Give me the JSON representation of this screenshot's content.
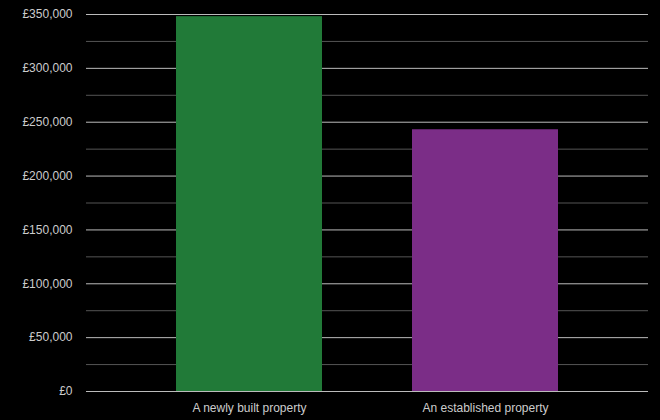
{
  "chart_data": {
    "type": "bar",
    "categories": [
      "A newly built property",
      "An established property"
    ],
    "values": [
      348000,
      243000
    ],
    "colors": [
      "#217a38",
      "#7b2d87"
    ],
    "ylim": [
      0,
      350000
    ],
    "yticks": [
      {
        "value": 0,
        "label": "£0"
      },
      {
        "value": 50000,
        "label": "£50,000"
      },
      {
        "value": 100000,
        "label": "£100,000"
      },
      {
        "value": 150000,
        "label": "£150,000"
      },
      {
        "value": 200000,
        "label": "£200,000"
      },
      {
        "value": 250000,
        "label": "£250,000"
      },
      {
        "value": 300000,
        "label": "£300,000"
      },
      {
        "value": 350000,
        "label": "£350,000"
      }
    ],
    "grid": true
  }
}
